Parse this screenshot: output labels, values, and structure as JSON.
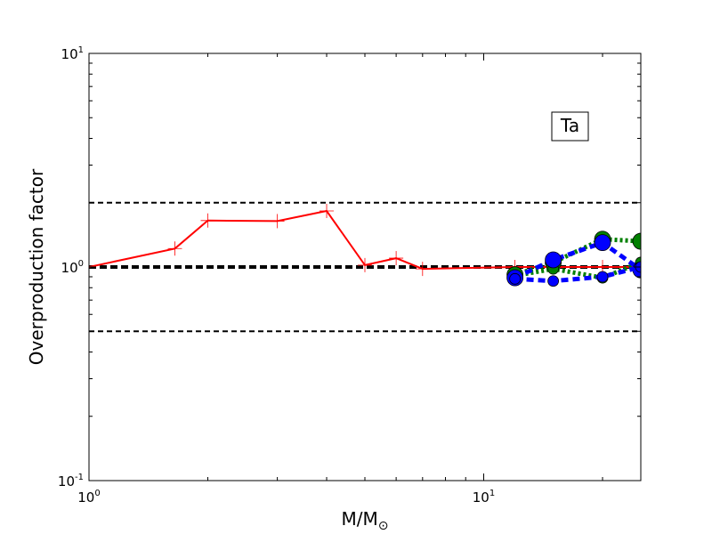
{
  "chart_data": {
    "type": "line",
    "title": "",
    "xlabel": "M/M",
    "xlabel_sub": "⊙",
    "ylabel": "Overproduction factor",
    "xscale": "log",
    "yscale": "log",
    "xlim": [
      1,
      25
    ],
    "ylim": [
      0.1,
      10
    ],
    "xticks": [
      {
        "value": 1,
        "base": "10",
        "exp": "0"
      },
      {
        "value": 10,
        "base": "10",
        "exp": "1"
      }
    ],
    "yticks": [
      {
        "value": 0.1,
        "base": "10",
        "exp": "-1"
      },
      {
        "value": 1,
        "base": "10",
        "exp": "0"
      },
      {
        "value": 10,
        "base": "10",
        "exp": "1"
      }
    ],
    "annotation": "Ta",
    "annotation_position": "top-right",
    "reference_lines": [
      {
        "y": 2.0,
        "style": "dashed",
        "color": "#000000",
        "width": 2
      },
      {
        "y": 1.0,
        "style": "dashed",
        "color": "#000000",
        "width": 4
      },
      {
        "y": 0.5,
        "style": "dashed",
        "color": "#000000",
        "width": 2
      }
    ],
    "series": [
      {
        "color": "#ff0000",
        "line": "solid",
        "marker": "plus",
        "x": [
          1.0,
          1.65,
          2.0,
          3.0,
          4.0,
          5.0,
          6.0,
          7.0,
          12.0,
          15.0,
          20.0,
          25.0
        ],
        "y": [
          1.0,
          1.22,
          1.65,
          1.64,
          1.83,
          1.02,
          1.1,
          0.98,
          1.0,
          1.0,
          1.0,
          1.0
        ]
      },
      {
        "color": "#008000",
        "line": "dotted",
        "marker": "circle",
        "x": [
          12.0,
          15.0,
          20.0,
          25.0
        ],
        "y": [
          0.92,
          1.05,
          1.35,
          1.32
        ]
      },
      {
        "color": "#008000",
        "line": "dotted",
        "marker": "circle",
        "x": [
          12.0,
          15.0,
          20.0,
          25.0
        ],
        "y": [
          0.91,
          0.98,
          0.89,
          1.05
        ]
      },
      {
        "color": "#0000ff",
        "line": "dashed",
        "marker": "circle",
        "x": [
          12.0,
          15.0,
          20.0,
          25.0
        ],
        "y": [
          0.89,
          1.08,
          1.3,
          0.97
        ]
      },
      {
        "color": "#0000ff",
        "line": "dashed",
        "marker": "circle",
        "x": [
          12.0,
          15.0,
          20.0,
          25.0
        ],
        "y": [
          0.88,
          0.86,
          0.9,
          1.0
        ]
      }
    ]
  }
}
